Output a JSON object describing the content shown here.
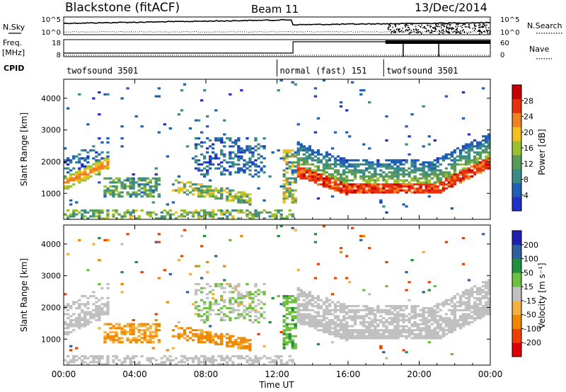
{
  "header": {
    "title": "Blackstone (fitACF)",
    "beam": "Beam 11",
    "date": "13/Dec/2014"
  },
  "left_labels": {
    "nsky": "N.Sky",
    "freq": "Freq.",
    "freq_unit": "[MHz]",
    "cpid": "CPID"
  },
  "right_labels": {
    "nsearch": "N.Search",
    "nave": "Nave"
  },
  "nsky_ticks": [
    "10^5",
    "10^0"
  ],
  "nsearch_ticks": [
    "10^5",
    "10^0"
  ],
  "freq_ticks": [
    "18",
    "8"
  ],
  "nave_ticks": [
    "60",
    "0"
  ],
  "cpid_segments": [
    {
      "label": "twofsound 3501",
      "start_hour": 0
    },
    {
      "label": "normal (fast) 151",
      "start_hour": 12
    },
    {
      "label": "twofsound 3501",
      "start_hour": 18
    }
  ],
  "colors": {
    "power": [
      "#2030c8",
      "#1f5fb4",
      "#3a8a8a",
      "#5a9a5a",
      "#9ac030",
      "#f0c020",
      "#f08020",
      "#e83010",
      "#c80000"
    ],
    "velocity": [
      "#e00000",
      "#f04000",
      "#f08800",
      "#f5b040",
      "#c0c0c0",
      "#70c040",
      "#209040",
      "#3060a0",
      "#2020b0"
    ]
  },
  "chart_data": [
    {
      "type": "heatmap",
      "name": "power",
      "title": "",
      "ylabel": "Slant Range [km]",
      "xlabel": "",
      "xlim": [
        0,
        24
      ],
      "ylim": [
        180,
        4600
      ],
      "x_ticks": [
        "00:00",
        "04:00",
        "08:00",
        "12:00",
        "16:00",
        "20:00",
        "00:00"
      ],
      "x_tick_hours": [
        0,
        4,
        8,
        12,
        16,
        20,
        24
      ],
      "y_ticks": [
        1000,
        2000,
        3000,
        4000
      ],
      "colorbar": {
        "label": "Power [dB]",
        "ticks": [
          "4",
          "8",
          "12",
          "16",
          "20",
          "24",
          "28"
        ]
      }
    },
    {
      "type": "heatmap",
      "name": "velocity",
      "title": "",
      "ylabel": "Slant Range [km]",
      "xlabel": "Time UT",
      "xlim": [
        0,
        24
      ],
      "ylim": [
        180,
        4600
      ],
      "x_ticks": [
        "00:00",
        "04:00",
        "08:00",
        "12:00",
        "16:00",
        "20:00",
        "00:00"
      ],
      "x_tick_hours": [
        0,
        4,
        8,
        12,
        16,
        20,
        24
      ],
      "y_ticks": [
        1000,
        2000,
        3000,
        4000
      ],
      "colorbar": {
        "label": "Velocity [m s⁻¹]",
        "ticks": [
          "200",
          "100",
          "50",
          "15",
          "-15",
          "-50",
          "-100",
          "-200"
        ]
      }
    }
  ]
}
